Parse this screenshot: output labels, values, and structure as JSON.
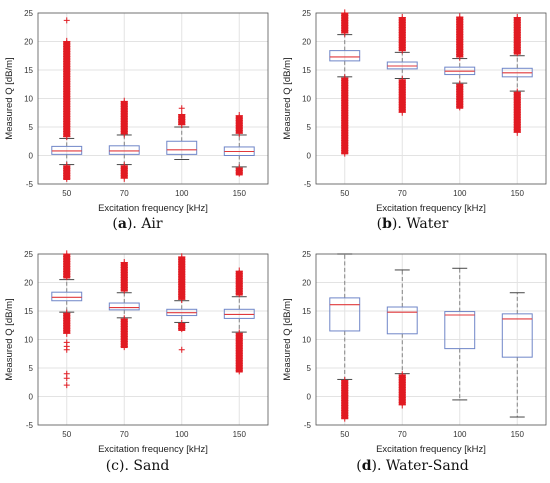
{
  "captions": [
    {
      "label": "a",
      "name": "Air"
    },
    {
      "label": "b",
      "name": "Water"
    },
    {
      "label": "c",
      "name": "Sand"
    },
    {
      "label": "d",
      "name": "Water-Sand"
    }
  ],
  "style": {
    "box_color": "#6f86c8",
    "median_color": "#e0393c",
    "outlier_color": "#e11b22",
    "grid_color": "#e3e3e3",
    "whisker_color": "#777777"
  },
  "chart_data": [
    {
      "type": "box",
      "title": "",
      "xlabel": "Excitation frequency [kHz]",
      "ylabel": "Measured Q [dB/m]",
      "ylim": [
        -5,
        25
      ],
      "yticks": [
        -5,
        0,
        5,
        10,
        15,
        20,
        25
      ],
      "categories": [
        "50",
        "70",
        "100",
        "150"
      ],
      "grid": true,
      "boxes": [
        {
          "q1": 0.2,
          "median": 0.8,
          "q3": 1.6,
          "whislo": -1.6,
          "whishi": 3.0,
          "outlier_low": [
            -1.8,
            -4.3
          ],
          "outlier_high": [
            3.2,
            20.0
          ],
          "extra_outliers": [
            23.7
          ]
        },
        {
          "q1": 0.2,
          "median": 0.8,
          "q3": 1.7,
          "whislo": -1.6,
          "whishi": 3.6,
          "outlier_low": [
            -1.8,
            -4.0
          ],
          "outlier_high": [
            3.8,
            9.5
          ],
          "extra_outliers": []
        },
        {
          "q1": 0.2,
          "median": 1.0,
          "q3": 2.5,
          "whislo": -0.7,
          "whishi": 5.0,
          "outlier_low": [],
          "outlier_high": [
            5.3,
            7.2
          ],
          "extra_outliers": [
            8.3
          ]
        },
        {
          "q1": 0.0,
          "median": 0.7,
          "q3": 1.5,
          "whislo": -2.0,
          "whishi": 3.6,
          "outlier_low": [
            -2.2,
            -3.5
          ],
          "outlier_high": [
            3.8,
            7.0
          ],
          "extra_outliers": []
        }
      ]
    },
    {
      "type": "box",
      "title": "",
      "xlabel": "Excitation frequency [kHz]",
      "ylabel": "Measured Q [dB/m]",
      "ylim": [
        -5,
        25
      ],
      "yticks": [
        -5,
        0,
        5,
        10,
        15,
        20,
        25
      ],
      "categories": [
        "50",
        "70",
        "100",
        "150"
      ],
      "grid": true,
      "boxes": [
        {
          "q1": 16.6,
          "median": 17.3,
          "q3": 18.4,
          "whislo": 13.8,
          "whishi": 21.2,
          "outlier_low": [
            13.6,
            0.2
          ],
          "outlier_high": [
            21.4,
            25.0
          ],
          "extra_outliers": []
        },
        {
          "q1": 15.2,
          "median": 15.7,
          "q3": 16.4,
          "whislo": 13.5,
          "whishi": 18.1,
          "outlier_low": [
            13.3,
            7.5
          ],
          "outlier_high": [
            18.3,
            24.2
          ],
          "extra_outliers": []
        },
        {
          "q1": 14.2,
          "median": 14.8,
          "q3": 15.5,
          "whislo": 12.7,
          "whishi": 17.0,
          "outlier_low": [
            12.5,
            8.2
          ],
          "outlier_high": [
            17.2,
            24.3
          ],
          "extra_outliers": []
        },
        {
          "q1": 13.8,
          "median": 14.5,
          "q3": 15.3,
          "whislo": 11.3,
          "whishi": 17.5,
          "outlier_low": [
            11.1,
            4.0
          ],
          "outlier_high": [
            17.7,
            24.2
          ],
          "extra_outliers": []
        }
      ]
    },
    {
      "type": "box",
      "title": "",
      "xlabel": "Excitation frequency [kHz]",
      "ylabel": "Measured Q [dB/m]",
      "ylim": [
        -5,
        25
      ],
      "yticks": [
        -5,
        0,
        5,
        10,
        15,
        20,
        25
      ],
      "categories": [
        "50",
        "70",
        "100",
        "150"
      ],
      "grid": true,
      "boxes": [
        {
          "q1": 16.8,
          "median": 17.4,
          "q3": 18.3,
          "whislo": 14.8,
          "whishi": 20.5,
          "outlier_low": [
            14.6,
            11.0
          ],
          "outlier_high": [
            20.7,
            25.0
          ],
          "extra_outliers": [
            9.5,
            8.8,
            8.2,
            4.0,
            3.2,
            2.0
          ]
        },
        {
          "q1": 15.2,
          "median": 15.6,
          "q3": 16.4,
          "whislo": 13.8,
          "whishi": 18.2,
          "outlier_low": [
            13.6,
            8.5
          ],
          "outlier_high": [
            18.4,
            23.5
          ],
          "extra_outliers": []
        },
        {
          "q1": 14.2,
          "median": 14.7,
          "q3": 15.3,
          "whislo": 13.0,
          "whishi": 16.8,
          "outlier_low": [
            12.8,
            11.5
          ],
          "outlier_high": [
            17.0,
            24.5
          ],
          "extra_outliers": [
            8.2
          ]
        },
        {
          "q1": 13.7,
          "median": 14.4,
          "q3": 15.3,
          "whislo": 11.3,
          "whishi": 17.5,
          "outlier_low": [
            11.1,
            4.2
          ],
          "outlier_high": [
            17.7,
            22.0
          ],
          "extra_outliers": []
        }
      ]
    },
    {
      "type": "box",
      "title": "",
      "xlabel": "Excitation frequency [kHz]",
      "ylabel": "Measured Q [dB/m]",
      "ylim": [
        -5,
        25
      ],
      "yticks": [
        -5,
        0,
        5,
        10,
        15,
        20,
        25
      ],
      "categories": [
        "50",
        "70",
        "100",
        "150"
      ],
      "grid": true,
      "boxes": [
        {
          "q1": 11.5,
          "median": 16.1,
          "q3": 17.3,
          "whislo": 3.0,
          "whishi": 25.0,
          "outlier_low": [
            2.8,
            -4.0
          ],
          "outlier_high": [],
          "extra_outliers": []
        },
        {
          "q1": 11.0,
          "median": 14.8,
          "q3": 15.7,
          "whislo": 4.0,
          "whishi": 22.2,
          "outlier_low": [
            3.8,
            -1.5
          ],
          "outlier_high": [],
          "extra_outliers": []
        },
        {
          "q1": 8.4,
          "median": 14.3,
          "q3": 14.9,
          "whislo": -0.6,
          "whishi": 22.5,
          "outlier_low": [],
          "outlier_high": [],
          "extra_outliers": []
        },
        {
          "q1": 6.9,
          "median": 13.6,
          "q3": 14.5,
          "whislo": -3.6,
          "whishi": 18.2,
          "outlier_low": [],
          "outlier_high": [],
          "extra_outliers": []
        }
      ]
    }
  ]
}
